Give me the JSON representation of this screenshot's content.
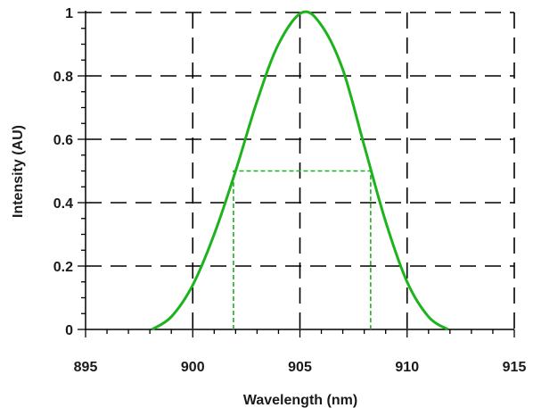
{
  "chart_data": {
    "type": "line",
    "title": "",
    "xlabel": "Wavelength (nm)",
    "ylabel": "Intensity (AU)",
    "xlim": [
      895,
      915
    ],
    "ylim": [
      0,
      1
    ],
    "xticks": [
      895,
      900,
      905,
      910,
      915
    ],
    "yticks": [
      0,
      0.2,
      0.4,
      0.6,
      0.8,
      1
    ],
    "xtick_labels": [
      "895",
      "900",
      "905",
      "910",
      "915"
    ],
    "ytick_labels": [
      "0",
      "0.2",
      "0.4",
      "0.6",
      "0.8",
      "1"
    ],
    "grid": true,
    "grid_style": "dashed",
    "series": [
      {
        "color": "#1db31d",
        "x": [
          898.1,
          899.0,
          900.0,
          901.0,
          902.0,
          903.0,
          904.0,
          905.1,
          906.0,
          907.0,
          908.0,
          909.0,
          910.0,
          911.0,
          911.9
        ],
        "y": [
          0.0,
          0.04,
          0.14,
          0.3,
          0.5,
          0.72,
          0.9,
          1.0,
          0.96,
          0.82,
          0.58,
          0.34,
          0.15,
          0.04,
          0.0
        ]
      }
    ],
    "annotations": {
      "half_max_box": {
        "color": "#1db31d",
        "x_left": 901.9,
        "x_right": 908.3,
        "y": 0.5
      }
    }
  }
}
